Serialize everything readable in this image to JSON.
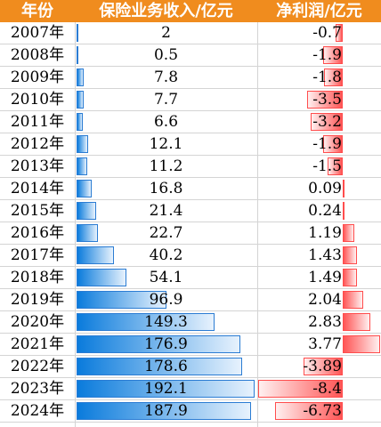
{
  "table": {
    "headers": {
      "year": "年份",
      "revenue": "保险业务收入/亿元",
      "net_profit": "净利润/亿元"
    },
    "colors": {
      "header_bg": "#f08c1e",
      "header_text": "#ffffff",
      "revenue_bar": "#0a7bdc",
      "profit_bar": "#ff5555"
    }
  },
  "chart_data": {
    "type": "table",
    "columns": [
      "年份",
      "保险业务收入/亿元",
      "净利润/亿元"
    ],
    "rows": [
      {
        "year": "2007年",
        "revenue": "2",
        "net_profit": "-0.7"
      },
      {
        "year": "2008年",
        "revenue": "0.5",
        "net_profit": "-1.9"
      },
      {
        "year": "2009年",
        "revenue": "7.8",
        "net_profit": "-1.8"
      },
      {
        "year": "2010年",
        "revenue": "7.7",
        "net_profit": "-3.5"
      },
      {
        "year": "2011年",
        "revenue": "6.6",
        "net_profit": "-3.2"
      },
      {
        "year": "2012年",
        "revenue": "12.1",
        "net_profit": "-1.9"
      },
      {
        "year": "2013年",
        "revenue": "11.2",
        "net_profit": "-1.5"
      },
      {
        "year": "2014年",
        "revenue": "16.8",
        "net_profit": "0.09"
      },
      {
        "year": "2015年",
        "revenue": "21.4",
        "net_profit": "0.24"
      },
      {
        "year": "2016年",
        "revenue": "22.7",
        "net_profit": "1.19"
      },
      {
        "year": "2017年",
        "revenue": "40.2",
        "net_profit": "1.43"
      },
      {
        "year": "2018年",
        "revenue": "54.1",
        "net_profit": "1.49"
      },
      {
        "year": "2019年",
        "revenue": "96.9",
        "net_profit": "2.04"
      },
      {
        "year": "2020年",
        "revenue": "149.3",
        "net_profit": "2.83"
      },
      {
        "year": "2021年",
        "revenue": "176.9",
        "net_profit": "3.77"
      },
      {
        "year": "2022年",
        "revenue": "178.6",
        "net_profit": "-3.89"
      },
      {
        "year": "2023年",
        "revenue": "192.1",
        "net_profit": "-8.4"
      },
      {
        "year": "2024年",
        "revenue": "187.9",
        "net_profit": "-6.73"
      }
    ],
    "revenue_bar_max": 192.1,
    "profit_bar_range": [
      -8.4,
      3.77
    ]
  }
}
